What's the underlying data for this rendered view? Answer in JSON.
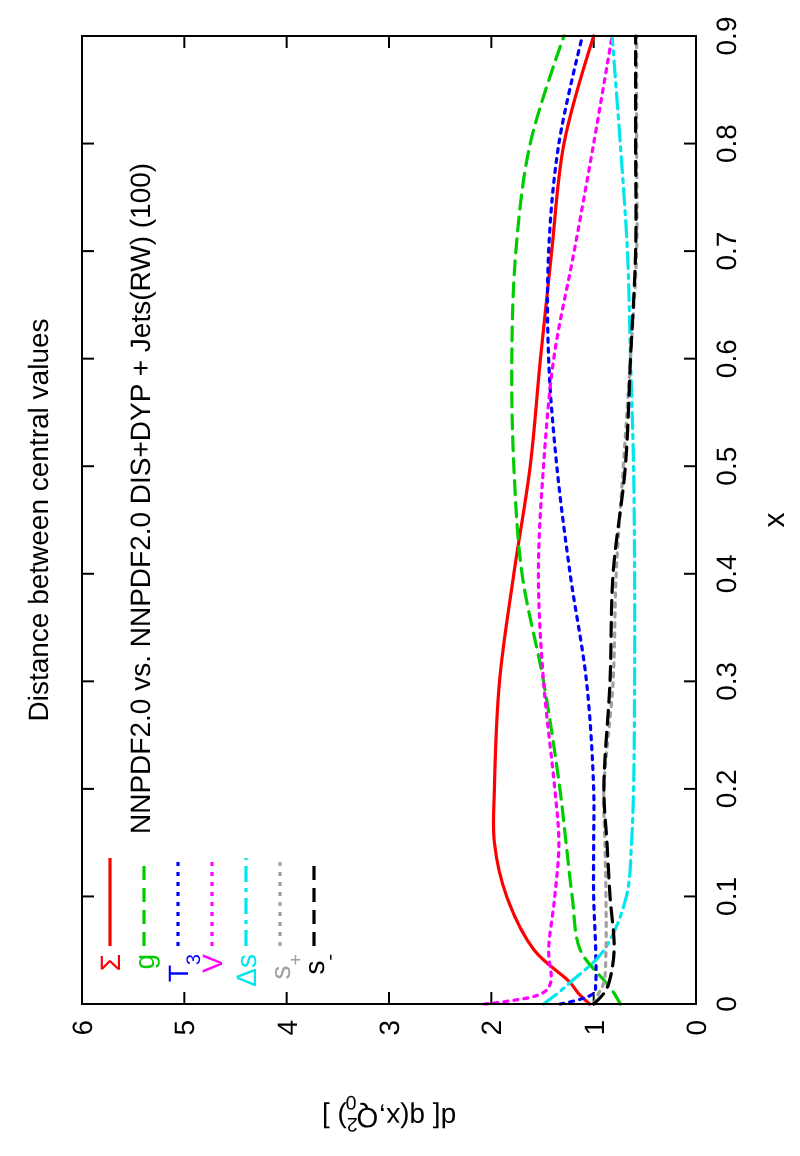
{
  "chart_data": {
    "type": "line",
    "title": "Distance between central values",
    "legend_title": "NNPDF2.0 vs. NNPDF2.0 DIS+DYP + Jets(RW) (100)",
    "ylabel": "x",
    "xlabel": "d[ q(x,Q$_{0}$$^{2}$) ]",
    "series": [
      {
        "name": "Σ",
        "color": "#ff0000",
        "line_style": "solid",
        "x": [
          1.04,
          1.15,
          1.23,
          1.58,
          1.85,
          1.97,
          1.97,
          1.92,
          1.78,
          1.62,
          1.52,
          1.41,
          1.29,
          1.0
        ],
        "values": [
          0,
          0.01,
          0.02,
          0.05,
          0.1,
          0.15,
          0.2,
          0.3,
          0.4,
          0.5,
          0.6,
          0.7,
          0.8,
          0.9
        ]
      },
      {
        "name": "g",
        "color": "#00cc00",
        "line_style": "dashed",
        "x": [
          0.74,
          0.8,
          0.88,
          1.13,
          1.21,
          1.27,
          1.33,
          1.49,
          1.7,
          1.78,
          1.8,
          1.76,
          1.62,
          1.29
        ],
        "values": [
          0,
          0.01,
          0.02,
          0.05,
          0.1,
          0.15,
          0.2,
          0.3,
          0.4,
          0.5,
          0.6,
          0.7,
          0.8,
          0.9
        ]
      },
      {
        "name": "T$_{3}$",
        "color": "#0000ff",
        "line_style": "dotted",
        "x": [
          1.33,
          1.0,
          0.98,
          0.98,
          1.0,
          1.0,
          1.0,
          1.07,
          1.23,
          1.36,
          1.44,
          1.44,
          1.34,
          1.11
        ],
        "values": [
          0,
          0.01,
          0.02,
          0.05,
          0.1,
          0.15,
          0.2,
          0.3,
          0.4,
          0.5,
          0.6,
          0.7,
          0.8,
          0.9
        ]
      },
      {
        "name": "V",
        "color": "#ff00ff",
        "line_style": "dotted",
        "x": [
          2.07,
          1.5,
          1.42,
          1.44,
          1.38,
          1.34,
          1.38,
          1.49,
          1.54,
          1.49,
          1.39,
          1.19,
          1.0,
          0.82
        ],
        "values": [
          0,
          0.01,
          0.02,
          0.05,
          0.1,
          0.15,
          0.2,
          0.3,
          0.4,
          0.5,
          0.6,
          0.7,
          0.8,
          0.9
        ]
      },
      {
        "name": "Δs",
        "color": "#00e5ee",
        "line_style": "dashdot",
        "x": [
          1.49,
          1.35,
          1.23,
          0.9,
          0.68,
          0.63,
          0.61,
          0.6,
          0.6,
          0.61,
          0.64,
          0.67,
          0.74,
          0.82
        ],
        "values": [
          0,
          0.01,
          0.02,
          0.05,
          0.1,
          0.15,
          0.2,
          0.3,
          0.4,
          0.5,
          0.6,
          0.7,
          0.8,
          0.9
        ]
      },
      {
        "name": "s$_{+}$",
        "color": "#a0a0a0",
        "line_style": "dotted",
        "x": [
          1.0,
          0.95,
          0.9,
          0.88,
          0.88,
          0.89,
          0.9,
          0.81,
          0.78,
          0.71,
          0.64,
          0.58,
          0.58,
          0.58
        ],
        "values": [
          0,
          0.01,
          0.02,
          0.05,
          0.1,
          0.15,
          0.2,
          0.3,
          0.4,
          0.5,
          0.6,
          0.7,
          0.8,
          0.9
        ]
      },
      {
        "name": "s$_{-}$",
        "color": "#000000",
        "line_style": "dashed",
        "x": [
          1.0,
          0.9,
          0.85,
          0.8,
          0.84,
          0.87,
          0.9,
          0.84,
          0.81,
          0.69,
          0.64,
          0.59,
          0.59,
          0.59
        ],
        "values": [
          0,
          0.01,
          0.02,
          0.05,
          0.1,
          0.15,
          0.2,
          0.3,
          0.4,
          0.5,
          0.6,
          0.7,
          0.8,
          0.9
        ]
      }
    ],
    "xlim": [
      6,
      0
    ],
    "xticks": [
      0,
      1,
      2,
      3,
      4,
      5,
      6
    ],
    "ylim": [
      0,
      0.9
    ],
    "yticks": [
      0,
      0.1,
      0.2,
      0.3,
      0.4,
      0.5,
      0.6,
      0.7,
      0.8,
      0.9
    ],
    "grid": false,
    "legend": "bottom left"
  }
}
